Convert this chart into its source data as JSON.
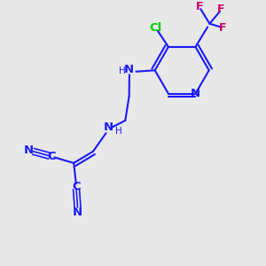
{
  "background_color": "#e8e8e8",
  "bond_color": "#1a1aff",
  "atom_colors": {
    "N": "#1a1aff",
    "Cl": "#00cc00",
    "F": "#cc0066",
    "C": "#1a1aff"
  },
  "line_width": 1.5,
  "font_size": 9.5
}
